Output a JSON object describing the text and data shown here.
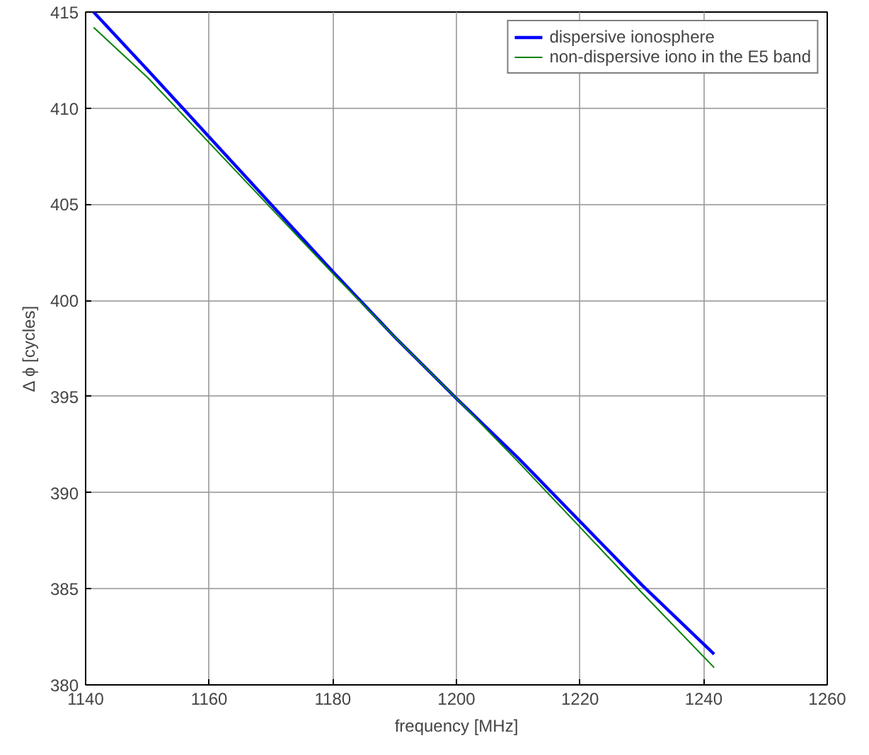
{
  "chart_data": {
    "type": "line",
    "xlabel": "frequency [MHz]",
    "ylabel": "Δ ϕ [cycles]",
    "xlim": [
      1140,
      1260
    ],
    "ylim": [
      380,
      415
    ],
    "xticks": [
      1140,
      1160,
      1180,
      1200,
      1220,
      1240,
      1260
    ],
    "yticks": [
      380,
      385,
      390,
      395,
      400,
      405,
      410,
      415
    ],
    "grid": true,
    "legend": "top right",
    "series": [
      {
        "name": "dispersive ionosphere",
        "color": "#0000ff",
        "x": [
          1141.3,
          1150,
          1160,
          1170,
          1180,
          1190,
          1200,
          1210,
          1220,
          1230,
          1241.7
        ],
        "values": [
          415.0,
          412.0,
          408.5,
          405.0,
          401.5,
          398.1,
          394.9,
          391.8,
          388.5,
          385.2,
          381.6
        ]
      },
      {
        "name": "non-dispersive iono in the E5 band",
        "color": "#008000",
        "x": [
          1141.3,
          1150,
          1160,
          1170,
          1180,
          1190,
          1200,
          1210,
          1220,
          1230,
          1241.7
        ],
        "values": [
          414.2,
          411.6,
          408.2,
          404.8,
          401.4,
          398.1,
          394.9,
          391.6,
          388.2,
          384.8,
          380.9
        ]
      }
    ]
  }
}
